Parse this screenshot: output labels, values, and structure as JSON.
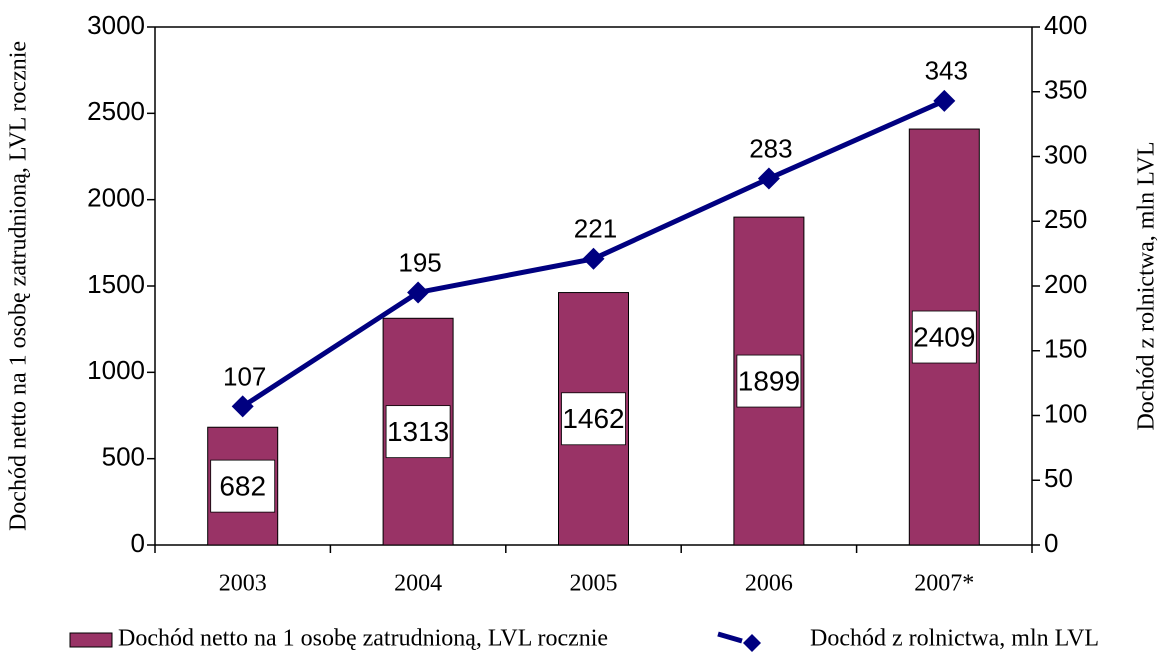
{
  "chart_data": {
    "type": "combo",
    "categories": [
      "2003",
      "2004",
      "2005",
      "2006",
      "2007*"
    ],
    "series": [
      {
        "name": "Dochód netto na 1 osobę zatrudnioną, LVL rocznie",
        "type": "bar",
        "color": "#993366",
        "values": [
          682,
          1313,
          1462,
          1899,
          2409
        ]
      },
      {
        "name": "Dochód z rolnictwa, mln LVL",
        "type": "line",
        "axis": "y2",
        "color": "#000080",
        "values": [
          107,
          195,
          221,
          283,
          343
        ]
      }
    ],
    "ylabel": "Dochód netto na 1 osobę zatrudnioną, LVL  rocznie",
    "y2label": "Dochód z rolnictwa,  mln  LVL",
    "ylim": [
      0,
      3000
    ],
    "yticks": [
      0,
      500,
      1000,
      1500,
      2000,
      2500,
      3000
    ],
    "y2lim": [
      0,
      400
    ],
    "y2ticks": [
      0,
      50,
      100,
      150,
      200,
      250,
      300,
      350,
      400
    ],
    "legend": "bottom"
  }
}
